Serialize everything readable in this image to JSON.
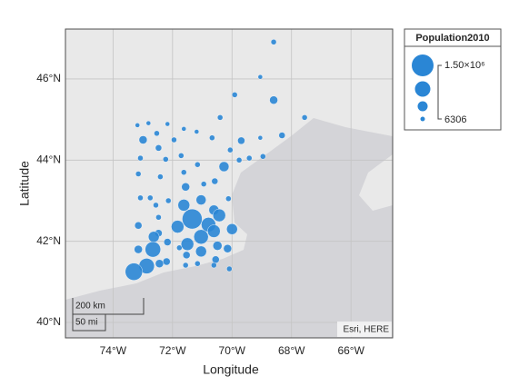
{
  "chart_data": {
    "type": "bubble",
    "xlabel": "Longitude",
    "ylabel": "Latitude",
    "x": [
      -68.6,
      -69.91,
      -69.05,
      -68.6,
      -67.56,
      -70.4,
      -73.18,
      -72.81,
      -72.17,
      -71.62,
      -71.19,
      -72.53,
      -71.95,
      -72.99,
      -70.67,
      -69.69,
      -69.05,
      -68.32,
      -72.47,
      -70.06,
      -73.08,
      -72.23,
      -71.71,
      -71.16,
      -70.27,
      -69.76,
      -69.42,
      -68.96,
      -73.15,
      -72.41,
      -71.62,
      -70.58,
      -70.95,
      -71.56,
      -73.08,
      -72.75,
      -72.14,
      -71.04,
      -70.12,
      -72.56,
      -71.62,
      -70.61,
      -72.47,
      -73.15,
      -72.47,
      -71.83,
      -71.34,
      -70.79,
      -70.43,
      -70.0,
      -71.04,
      -70.61,
      -72.17,
      -71.77,
      -72.63,
      -73.15,
      -72.66,
      -71.5,
      -71.04,
      -70.49,
      -70.15,
      -72.2,
      -71.53,
      -70.55,
      -71.16,
      -71.56,
      -72.87,
      -73.3,
      -72.44,
      -70.61,
      -70.09
    ],
    "y": [
      46.91,
      45.61,
      46.05,
      45.48,
      45.05,
      45.05,
      44.86,
      44.91,
      44.89,
      44.77,
      44.7,
      44.66,
      44.5,
      44.5,
      44.55,
      44.48,
      44.55,
      44.61,
      44.3,
      44.25,
      44.05,
      44.02,
      44.11,
      43.89,
      43.84,
      44.0,
      44.05,
      44.09,
      43.66,
      43.59,
      43.7,
      43.48,
      43.41,
      43.34,
      43.07,
      43.07,
      43.0,
      43.02,
      43.05,
      42.89,
      42.89,
      42.77,
      42.59,
      42.39,
      42.2,
      42.36,
      42.55,
      42.41,
      42.64,
      42.3,
      42.11,
      42.25,
      41.98,
      41.84,
      42.11,
      41.8,
      41.8,
      41.93,
      41.75,
      41.89,
      41.82,
      41.5,
      41.66,
      41.55,
      41.45,
      41.41,
      41.39,
      41.25,
      41.45,
      41.41,
      41.32
    ],
    "sizes": [
      85000,
      85000,
      8000,
      320000,
      85000,
      85000,
      8000,
      8000,
      8000,
      8000,
      8000,
      85000,
      85000,
      320000,
      85000,
      242000,
      8000,
      163000,
      163000,
      85000,
      85000,
      85000,
      85000,
      85000,
      477000,
      85000,
      85000,
      85000,
      85000,
      85000,
      85000,
      163000,
      85000,
      320000,
      85000,
      85000,
      85000,
      477000,
      85000,
      85000,
      635000,
      477000,
      85000,
      242000,
      242000,
      713000,
      1340000,
      870000,
      713000,
      556000,
      870000,
      713000,
      242000,
      85000,
      556000,
      320000,
      950000,
      713000,
      556000,
      400000,
      320000,
      242000,
      242000,
      242000,
      85000,
      85000,
      950000,
      1105000,
      320000,
      85000,
      85000
    ],
    "color": "#2a86d5",
    "xlim": [
      -75.6,
      -64.6
    ],
    "ylim": [
      39.62,
      47.23
    ],
    "xticks": [
      {
        "value": -74,
        "label": "74°W"
      },
      {
        "value": -72,
        "label": "72°W"
      },
      {
        "value": -70,
        "label": "70°W"
      },
      {
        "value": -68,
        "label": "68°W"
      },
      {
        "value": -66,
        "label": "66°W"
      }
    ],
    "yticks": [
      {
        "value": 40,
        "label": "40°N"
      },
      {
        "value": 42,
        "label": "42°N"
      },
      {
        "value": 44,
        "label": "44°N"
      },
      {
        "value": 46,
        "label": "46°N"
      }
    ],
    "grid": true,
    "size_legend": {
      "title": "Population2010",
      "limits": [
        {
          "value": 1500000,
          "label": "1.50×10⁶"
        },
        6306
      ]
    },
    "scalebar": [
      "200 km",
      "50 mi"
    ],
    "attribution": "Esri, HERE"
  }
}
